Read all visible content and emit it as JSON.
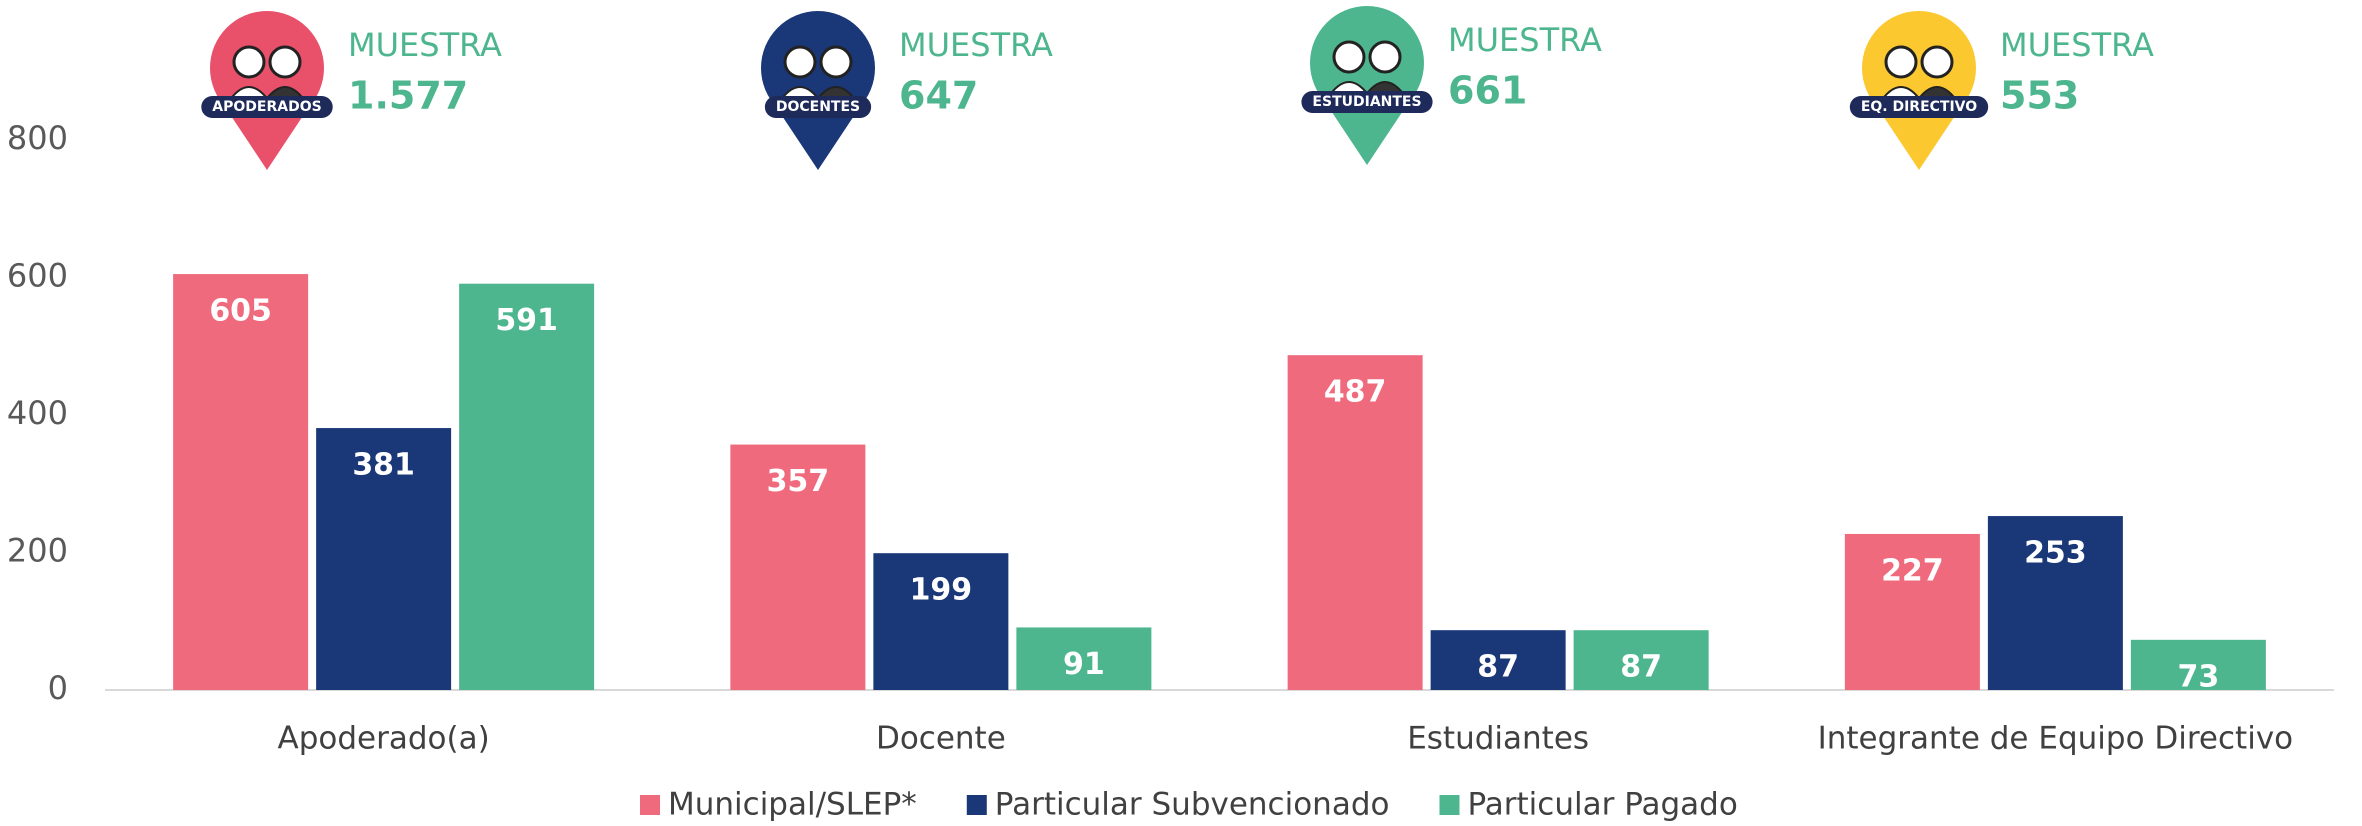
{
  "chart_data": {
    "type": "bar",
    "categories": [
      "Apoderado(a)",
      "Docente",
      "Estudiantes",
      "Integrante de Equipo Directivo"
    ],
    "series": [
      {
        "name": "Municipal/SLEP*",
        "color": "#f06a7e",
        "values": [
          605,
          357,
          487,
          227
        ]
      },
      {
        "name": "Particular Subvencionado",
        "color": "#1a3778",
        "values": [
          381,
          199,
          87,
          253
        ]
      },
      {
        "name": "Particular Pagado",
        "color": "#4db68e",
        "values": [
          591,
          91,
          87,
          73
        ]
      }
    ],
    "ylim": [
      0,
      800
    ],
    "yticks": [
      0,
      200,
      400,
      600,
      800
    ],
    "grid": false,
    "legend": "bottom",
    "annotations": [
      {
        "badge": "APODERADOS",
        "label": "MUESTRA",
        "text": "1.577",
        "color": "#e9506a"
      },
      {
        "badge": "DOCENTES",
        "label": "MUESTRA",
        "text": "647",
        "color": "#1a3778"
      },
      {
        "badge": "ESTUDIANTES",
        "label": "MUESTRA",
        "text": "661",
        "color": "#4db68e"
      },
      {
        "badge": "EQ. DIRECTIVO",
        "label": "MUESTRA",
        "text": "553",
        "color": "#fbc830"
      }
    ]
  }
}
